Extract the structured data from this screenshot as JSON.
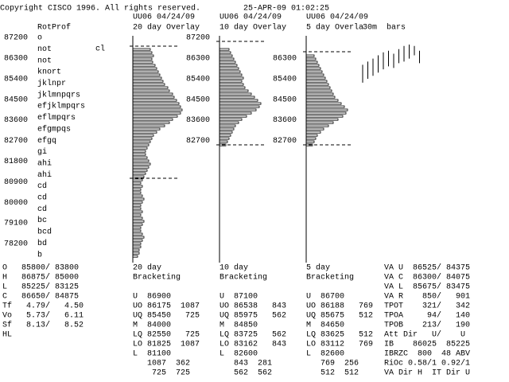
{
  "header": {
    "copyright": "Copyright CISCO 1996. All rights reserved.",
    "timestamp": "25-APR-09 01:02:25"
  },
  "rot_prof": {
    "title": "RotProf",
    "prices": [
      87200,
      86300,
      85400,
      84500,
      83600,
      82700,
      81800,
      80900,
      80000,
      79100,
      78200
    ],
    "rows": [
      "o",
      "not",
      "not",
      "knort",
      "jklnpr",
      "jklmnpqrs",
      "efjklmpqrs",
      "eflmpqrs",
      "efgmpqs",
      "efgq",
      "gi",
      "ahi",
      "ahi",
      "cd",
      "cd",
      "cd",
      "bc",
      "bcd",
      "bd",
      "b"
    ],
    "note": "cl"
  },
  "overlays": [
    {
      "id": "UU06 04/24/09",
      "title": "20 day Overlay",
      "prices": [],
      "bars": [
        22,
        24,
        26,
        24,
        25,
        28,
        30,
        32,
        34,
        36,
        38,
        40,
        44,
        46,
        50,
        52,
        55,
        58,
        60,
        62,
        60,
        56,
        50,
        46,
        40,
        34,
        30,
        26,
        24,
        22,
        20,
        18,
        16,
        16,
        18,
        20,
        22,
        20,
        18,
        16,
        14,
        12,
        10,
        12,
        10,
        10,
        12,
        14,
        12,
        10,
        10,
        12,
        10,
        12,
        14,
        12,
        10,
        10,
        12,
        14,
        12,
        10,
        10,
        8,
        8,
        6
      ]
    },
    {
      "id": "UU06 04/24/09",
      "title": "10 day Overlay",
      "prices": [
        87200,
        86300,
        85400,
        84500,
        83600,
        82700
      ],
      "bars": [
        12,
        14,
        16,
        18,
        20,
        22,
        24,
        26,
        28,
        30,
        28,
        30,
        32,
        36,
        40,
        44,
        48,
        52,
        50,
        46,
        40,
        34,
        28,
        24,
        20,
        18,
        16,
        14,
        12,
        10,
        8
      ]
    },
    {
      "id": "UU06 04/24/09",
      "title": "5 day Overla",
      "prices": [
        86300,
        85400,
        84500,
        83600,
        82700
      ],
      "bars": [
        10,
        12,
        14,
        16,
        18,
        20,
        22,
        24,
        26,
        28,
        30,
        32,
        34,
        36,
        40,
        44,
        48,
        52,
        50,
        46,
        40,
        34,
        28,
        22,
        18,
        14,
        12,
        10,
        8
      ]
    }
  ],
  "bars_30m": {
    "title": "30m  bars",
    "ranges": [
      [
        86010,
        85230
      ],
      [
        86150,
        85400
      ],
      [
        86280,
        85530
      ],
      [
        86420,
        85670
      ],
      [
        86550,
        85810
      ],
      [
        86620,
        85940
      ],
      [
        86490,
        85870
      ],
      [
        86690,
        86080
      ],
      [
        86830,
        86150
      ],
      [
        86890,
        86280
      ],
      [
        86830,
        86420
      ],
      [
        86620,
        86080
      ]
    ]
  },
  "stats": {
    "summary": [
      "O   85800/ 83800",
      "H   86875/ 85000",
      "L   85225/ 83125",
      "C   86650/ 84875",
      "Tf   4.79/   4.50",
      "Vo   5.73/   6.11",
      "Sf   8.13/   8.52",
      "HL"
    ],
    "bracketing": [
      {
        "header": [
          "20 day",
          "Bracketing"
        ],
        "lines": [
          "U  86900",
          "UO 86175  1087",
          "UQ 85450   725",
          "M  84000",
          "LQ 82550   725",
          "LO 81825  1087",
          "L  81100",
          "   1087  362",
          "    725  725"
        ]
      },
      {
        "header": [
          "10 day",
          "Bracketing"
        ],
        "lines": [
          "U  87100",
          "UO 86538   843",
          "UQ 85975   562",
          "M  84850",
          "LQ 83725   562",
          "LO 83162   843",
          "L  82600",
          "   843  281",
          "   562  562"
        ]
      },
      {
        "header": [
          "5 day",
          "Bracketing"
        ],
        "lines": [
          "U  86700",
          "UO 86188   769",
          "UQ 85675   512",
          "M  84650",
          "LQ 83625   512",
          "LO 83112   769",
          "L  82600",
          "   769  256",
          "   512  512"
        ]
      }
    ],
    "value_area": [
      "VA U  86525/ 84375",
      "VA C  86300/ 84075",
      "VA L  85675/ 83475",
      "VA R    850/   901",
      "TPOT    321/   342",
      "TPOA     94/   140",
      "TPOB    213/   190",
      "Att Dir   U/    U",
      "IB    86025  85225",
      "IBRZC  800  48 ABV",
      "RiOc 0.58/1 0.92/1",
      "VA Dir H  IT Dir U"
    ]
  }
}
